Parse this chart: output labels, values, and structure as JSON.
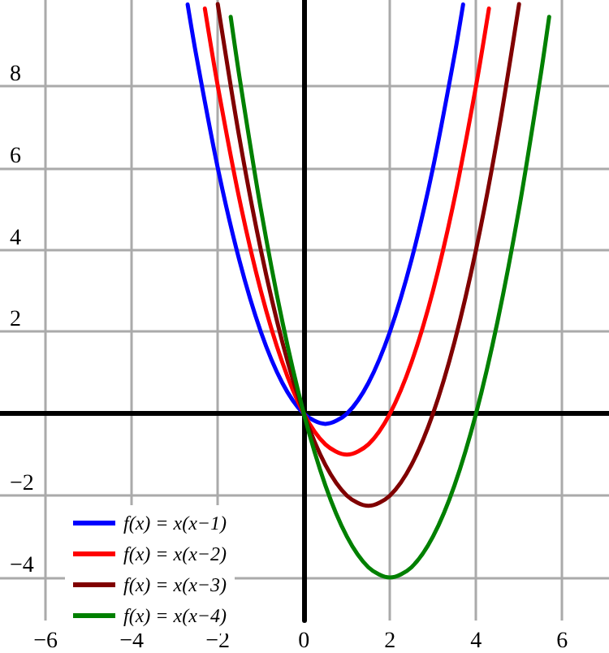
{
  "chart_data": {
    "type": "line",
    "xlim": [
      -7.06,
      7.09
    ],
    "ylim": [
      -5.05,
      10.1
    ],
    "xticks": [
      -6,
      -4,
      -2,
      0,
      2,
      4,
      6
    ],
    "yticks": [
      -4,
      -2,
      2,
      4,
      6,
      8
    ],
    "grid": true,
    "legend": "bottom left",
    "marker": "none",
    "line_style": "solid",
    "series": [
      {
        "name": "f(x) = x(x−1)",
        "color": "#0000ff",
        "x": [
          -2.7,
          -2.5,
          -2,
          -1.5,
          -1,
          -0.5,
          0,
          0.5,
          1,
          1.5,
          2,
          2.5,
          3,
          3.5,
          3.7
        ],
        "values": [
          9.99,
          8.75,
          6,
          3.75,
          2,
          0.75,
          0,
          -0.25,
          0,
          0.75,
          2,
          3.75,
          6,
          8.75,
          9.99
        ]
      },
      {
        "name": "f(x) = x(x−2)",
        "color": "#ff0000",
        "x": [
          -2.3,
          -2,
          -1.5,
          -1,
          -0.5,
          0,
          0.5,
          1,
          1.5,
          2,
          2.5,
          3,
          3.5,
          4,
          4.3
        ],
        "values": [
          9.89,
          8,
          5.25,
          3,
          1.25,
          0,
          -0.75,
          -1,
          -0.75,
          0,
          1.25,
          3,
          5.25,
          8,
          9.89
        ]
      },
      {
        "name": "f(x) = x(x−3)",
        "color": "#800000",
        "x": [
          -2,
          -1.5,
          -1,
          -0.5,
          0,
          0.5,
          1,
          1.5,
          2,
          2.5,
          3,
          3.5,
          4,
          4.5,
          5
        ],
        "values": [
          10,
          6.75,
          4,
          1.75,
          0,
          -1.25,
          -2,
          -2.25,
          -2,
          -1.25,
          0,
          1.75,
          4,
          6.75,
          10
        ]
      },
      {
        "name": "f(x) = x(x−4)",
        "color": "#008000",
        "x": [
          -1.7,
          -1.5,
          -1,
          -0.5,
          0,
          0.5,
          1,
          1.5,
          2,
          2.5,
          3,
          3.5,
          4,
          4.5,
          5,
          5.5,
          5.7
        ],
        "values": [
          9.69,
          8.25,
          5,
          2.25,
          0,
          -1.75,
          -3,
          -3.75,
          -4,
          -3.75,
          -3,
          -1.75,
          0,
          2.25,
          5,
          8.25,
          9.69
        ]
      }
    ]
  }
}
